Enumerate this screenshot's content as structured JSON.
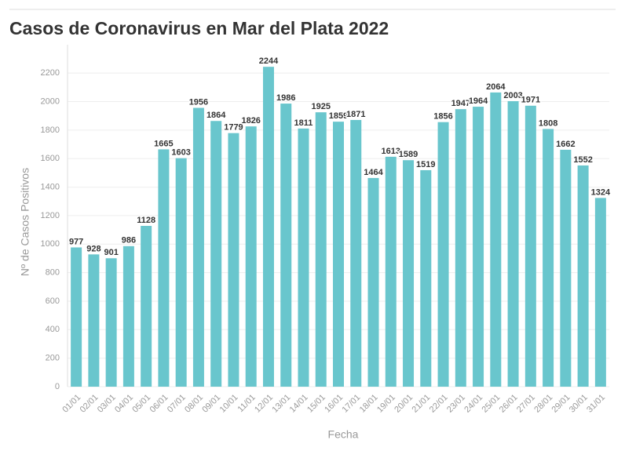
{
  "chart_data": {
    "type": "bar",
    "title": "Casos de Coronavirus en Mar del Plata 2022",
    "x_label": "Fecha",
    "y_label": "Nº de Casos Positivos",
    "categories": [
      "01/01",
      "02/01",
      "03/01",
      "04/01",
      "05/01",
      "06/01",
      "07/01",
      "08/01",
      "09/01",
      "10/01",
      "11/01",
      "12/01",
      "13/01",
      "14/01",
      "15/01",
      "16/01",
      "17/01",
      "18/01",
      "19/01",
      "20/01",
      "21/01",
      "22/01",
      "23/01",
      "24/01",
      "25/01",
      "26/01",
      "27/01",
      "28/01",
      "29/01",
      "30/01",
      "31/01"
    ],
    "values": [
      977,
      928,
      901,
      986,
      1128,
      1665,
      1603,
      1956,
      1864,
      1779,
      1826,
      2244,
      1986,
      1811,
      1925,
      1859,
      1871,
      1464,
      1613,
      1589,
      1519,
      1856,
      1947,
      1964,
      2064,
      2003,
      1971,
      1808,
      1662,
      1552,
      1324
    ],
    "color": "#69c6cd",
    "ylim": [
      0,
      2300
    ],
    "yticks": [
      0,
      200,
      400,
      600,
      800,
      1000,
      1200,
      1400,
      1600,
      1800,
      2000,
      2200
    ],
    "grid": true
  }
}
